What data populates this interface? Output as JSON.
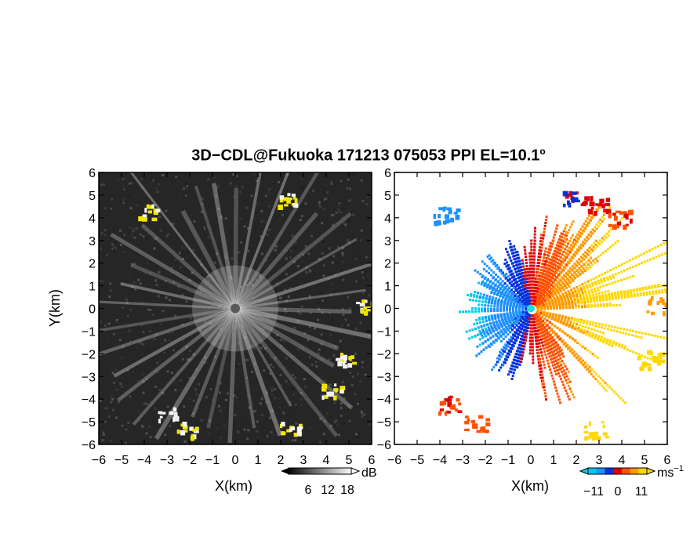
{
  "title": {
    "main": "3D−CDL@Fukuoka 171213 075053 PPI EL=10.1",
    "degree": "o"
  },
  "chart_data": [
    {
      "type": "heatmap",
      "panel": "left",
      "variable": "reflectivity",
      "xlabel": "X(km)",
      "ylabel": "Y(km)",
      "xlim": [
        -6,
        6
      ],
      "ylim": [
        -6,
        6
      ],
      "x_ticks": [
        "−6",
        "−5",
        "−4",
        "−3",
        "−2",
        "−1",
        "0",
        "1",
        "2",
        "3",
        "4",
        "5",
        "6"
      ],
      "y_ticks": [
        "6",
        "5",
        "4",
        "3",
        "2",
        "1",
        "0",
        "−1",
        "−2",
        "−3",
        "−4",
        "−5",
        "−6"
      ],
      "colorbar": {
        "unit": "dB",
        "ticks": [
          "6",
          "12",
          "18"
        ],
        "range": [
          0,
          22
        ]
      },
      "background_color": "#2a2a2a",
      "highlight_color": "#f2e600",
      "ray_count": 36,
      "echo_clusters": [
        {
          "x": -3.9,
          "y": 4.3,
          "color": "yellow"
        },
        {
          "x": 2.3,
          "y": 4.8,
          "color": "yellow"
        },
        {
          "x": 4.7,
          "y": -2.2,
          "color": "yellow"
        },
        {
          "x": 4.2,
          "y": -3.6,
          "color": "yellow"
        },
        {
          "x": 5.6,
          "y": 0.1,
          "color": "yellow"
        },
        {
          "x": -3.0,
          "y": -4.6,
          "color": "white"
        },
        {
          "x": -2.2,
          "y": -5.3,
          "color": "yellow"
        },
        {
          "x": 2.4,
          "y": -5.2,
          "color": "yellow"
        }
      ]
    },
    {
      "type": "heatmap",
      "panel": "right",
      "variable": "doppler_velocity",
      "xlabel": "X(km)",
      "xlim": [
        -6,
        6
      ],
      "ylim": [
        -6,
        6
      ],
      "x_ticks": [
        "−6",
        "−5",
        "−4",
        "−3",
        "−2",
        "−1",
        "0",
        "1",
        "2",
        "3",
        "4",
        "5",
        "6"
      ],
      "y_ticks": [
        "6",
        "5",
        "4",
        "3",
        "2",
        "1",
        "0",
        "−1",
        "−2",
        "−3",
        "−4",
        "−5",
        "−6"
      ],
      "colorbar": {
        "unit": "ms",
        "unit_exp": "−1",
        "ticks": [
          "−11",
          "0",
          "11"
        ],
        "range": [
          -14,
          14
        ]
      },
      "colors": [
        "#00c8f0",
        "#1e90ff",
        "#0030e0",
        "#e00000",
        "#ff5000",
        "#ff9a00",
        "#ffd800"
      ],
      "echo_clusters": [
        {
          "x": -3.8,
          "y": 4.2,
          "velocity": -9
        },
        {
          "x": 1.8,
          "y": 4.8,
          "velocity": -2
        },
        {
          "x": 2.8,
          "y": 4.6,
          "velocity": 1
        },
        {
          "x": 3.9,
          "y": 4.0,
          "velocity": 2
        },
        {
          "x": -3.7,
          "y": -4.2,
          "velocity": 2
        },
        {
          "x": -2.5,
          "y": -5.0,
          "velocity": 4
        },
        {
          "x": 5.2,
          "y": -2.2,
          "velocity": 11
        },
        {
          "x": 5.6,
          "y": 0.2,
          "velocity": 7
        },
        {
          "x": 2.8,
          "y": -5.3,
          "velocity": 12
        }
      ]
    }
  ]
}
